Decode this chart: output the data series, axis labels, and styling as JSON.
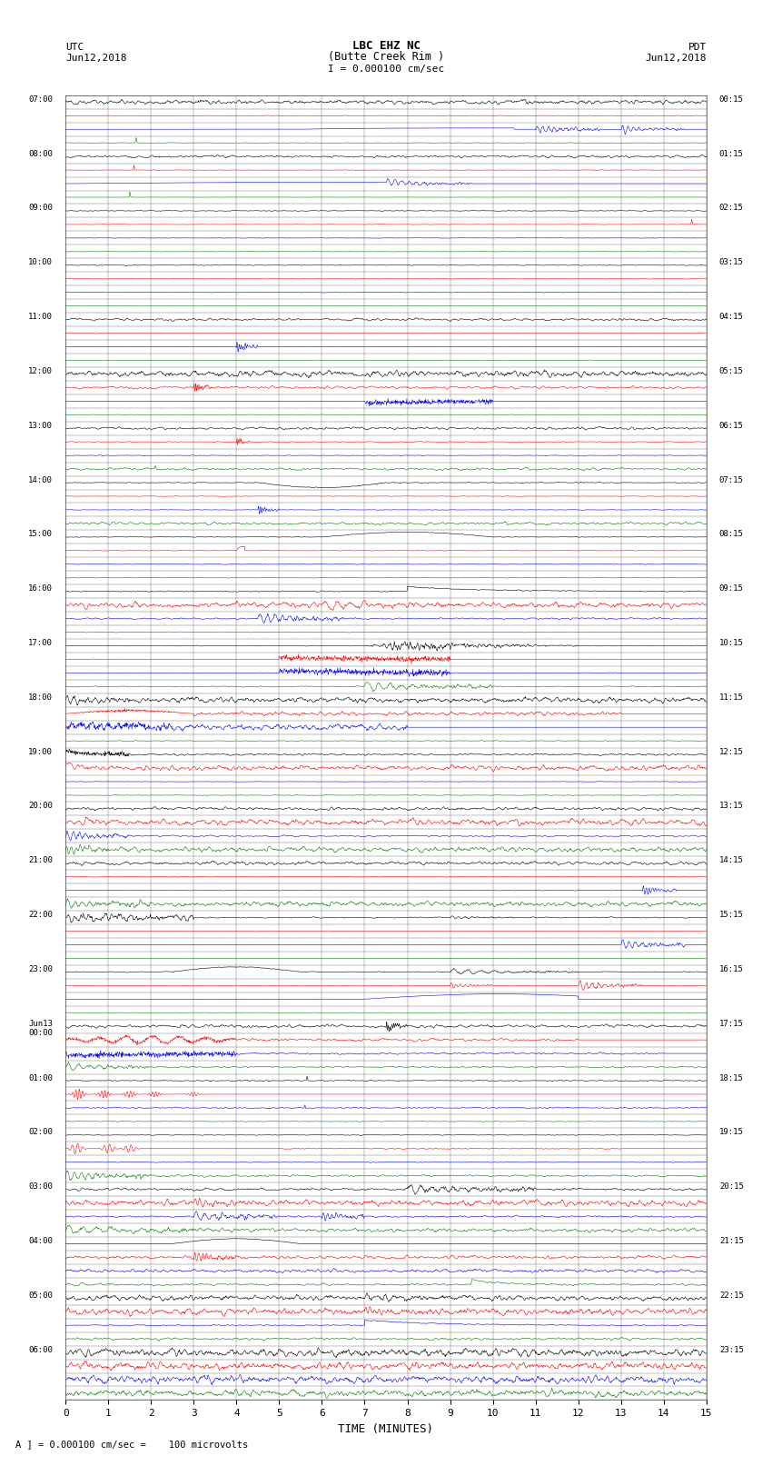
{
  "title_line1": "LBC EHZ NC",
  "title_line2": "(Butte Creek Rim )",
  "scale_text": "I = 0.000100 cm/sec",
  "left_label1": "UTC",
  "left_label2": "Jun12,2018",
  "right_label1": "PDT",
  "right_label2": "Jun12,2018",
  "xlabel": "TIME (MINUTES)",
  "bottom_note": "A ] = 0.000100 cm/sec =    100 microvolts",
  "utc_labels": [
    "07:00",
    "",
    "",
    "",
    "08:00",
    "",
    "",
    "",
    "09:00",
    "",
    "",
    "",
    "10:00",
    "",
    "",
    "",
    "11:00",
    "",
    "",
    "",
    "12:00",
    "",
    "",
    "",
    "13:00",
    "",
    "",
    "",
    "14:00",
    "",
    "",
    "",
    "15:00",
    "",
    "",
    "",
    "16:00",
    "",
    "",
    "",
    "17:00",
    "",
    "",
    "",
    "18:00",
    "",
    "",
    "",
    "19:00",
    "",
    "",
    "",
    "20:00",
    "",
    "",
    "",
    "21:00",
    "",
    "",
    "",
    "22:00",
    "",
    "",
    "",
    "23:00",
    "",
    "",
    "",
    "Jun13\n00:00",
    "",
    "",
    "",
    "01:00",
    "",
    "",
    "",
    "02:00",
    "",
    "",
    "",
    "03:00",
    "",
    "",
    "",
    "04:00",
    "",
    "",
    "",
    "05:00",
    "",
    "",
    "",
    "06:00",
    "",
    "",
    ""
  ],
  "pdt_labels": [
    "00:15",
    "",
    "",
    "",
    "01:15",
    "",
    "",
    "",
    "02:15",
    "",
    "",
    "",
    "03:15",
    "",
    "",
    "",
    "04:15",
    "",
    "",
    "",
    "05:15",
    "",
    "",
    "",
    "06:15",
    "",
    "",
    "",
    "07:15",
    "",
    "",
    "",
    "08:15",
    "",
    "",
    "",
    "09:15",
    "",
    "",
    "",
    "10:15",
    "",
    "",
    "",
    "11:15",
    "",
    "",
    "",
    "12:15",
    "",
    "",
    "",
    "13:15",
    "",
    "",
    "",
    "14:15",
    "",
    "",
    "",
    "15:15",
    "",
    "",
    "",
    "16:15",
    "",
    "",
    "",
    "17:15",
    "",
    "",
    "",
    "18:15",
    "",
    "",
    "",
    "19:15",
    "",
    "",
    "",
    "20:15",
    "",
    "",
    "",
    "21:15",
    "",
    "",
    "",
    "22:15",
    "",
    "",
    "",
    "23:15",
    "",
    "",
    ""
  ],
  "num_rows": 96,
  "minutes_per_row": 15,
  "colors_cycle": [
    "black",
    "red",
    "blue",
    "green"
  ],
  "background": "white",
  "grid_color": "#888888"
}
